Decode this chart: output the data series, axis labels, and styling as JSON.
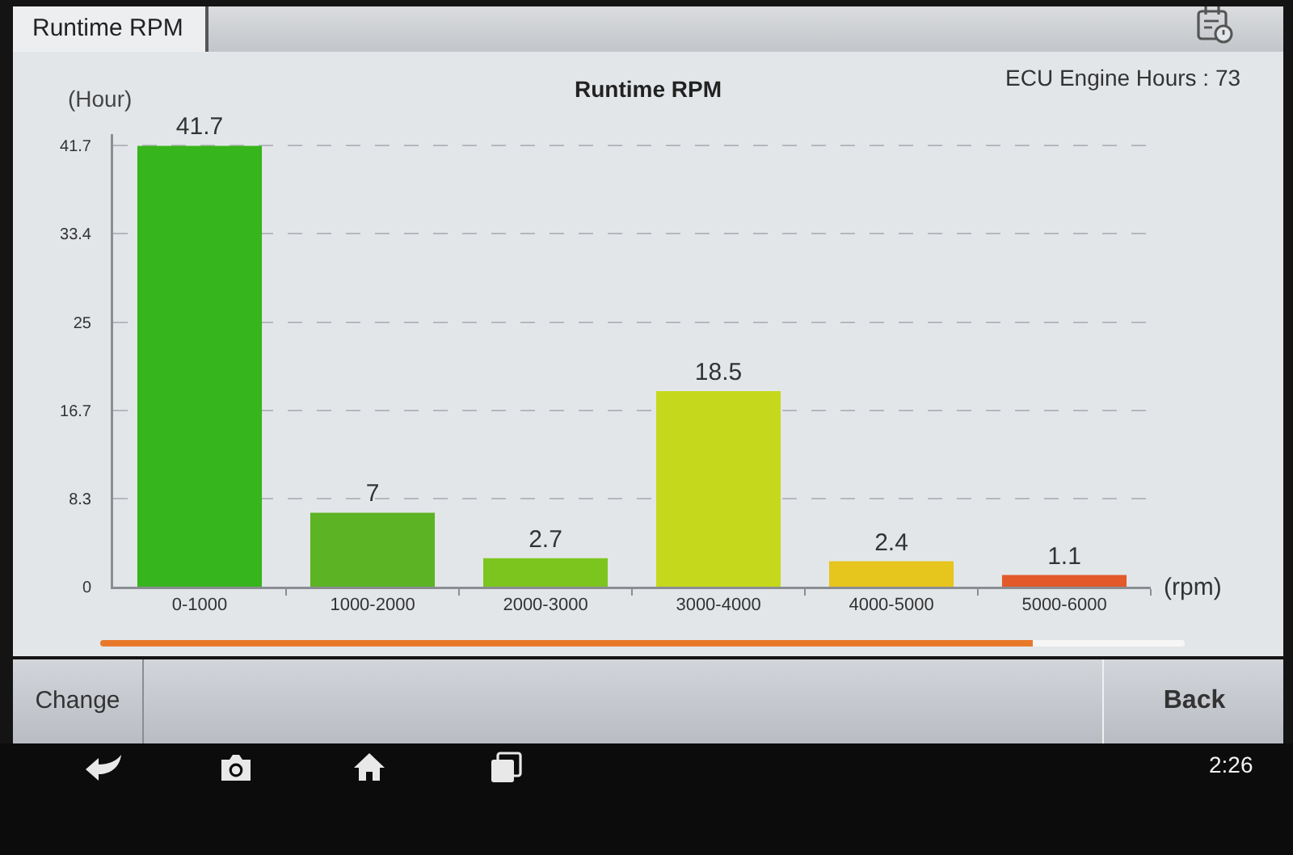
{
  "chart_data": {
    "type": "bar",
    "title": "Runtime RPM",
    "ylabel": "(Hour)",
    "xlabel": "(rpm)",
    "annotations": [
      "ECU Engine Hours : 73",
      "Runtime RPM",
      "Change",
      "Back",
      "2:26"
    ],
    "categories": [
      "0-1000",
      "1000-2000",
      "2000-3000",
      "3000-4000",
      "4000-5000",
      "5000-6000"
    ],
    "values": [
      41.7,
      7,
      2.7,
      18.5,
      2.4,
      1.1
    ],
    "colors": [
      "#36b51d",
      "#5cb323",
      "#7cc51f",
      "#c5d81c",
      "#e6c51d",
      "#e2592a"
    ],
    "ylim": [
      0,
      42.8
    ],
    "yticks": [
      0,
      8.3,
      16.7,
      25,
      33.4,
      41.7
    ],
    "grid": "y",
    "data_labels": true
  }
}
